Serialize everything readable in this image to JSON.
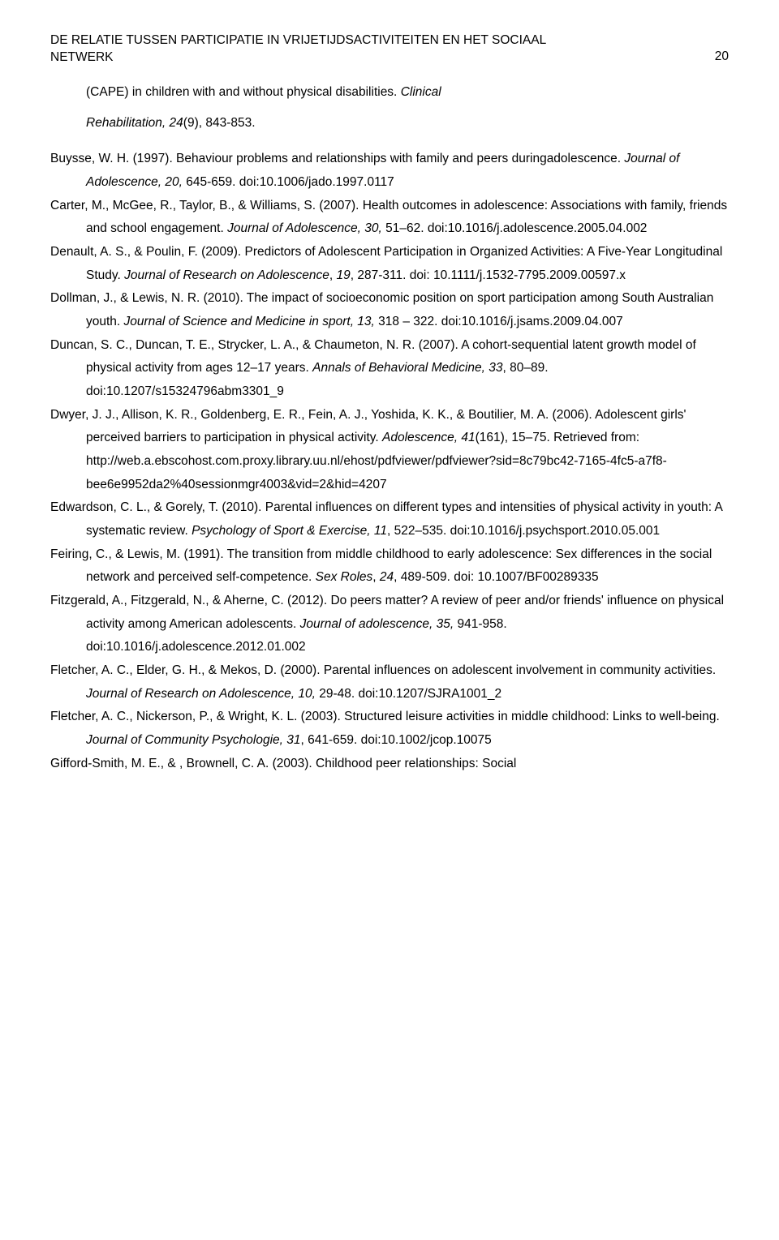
{
  "header": {
    "title_line1": "DE RELATIE TUSSEN PARTICIPATIE IN VRIJETIJDSACTIVITEITEN EN HET SOCIAAL",
    "title_line2": "NETWERK",
    "page": "20"
  },
  "cont": {
    "l1a": "(CAPE) in children with and without physical disabilities. ",
    "l1b": "Clinical",
    "l2a": "Rehabilitation, 24",
    "l2b": "(9), 843-853."
  },
  "refs": [
    {
      "parts": [
        {
          "t": "Buysse, W. H. (1997). Behaviour problems and relationships with family and peers duringadolescence. "
        },
        {
          "t": "Journal of Adolescence, 20,",
          "i": true
        },
        {
          "t": " 645-659. doi:10.1006/jado.1997.0117"
        }
      ]
    },
    {
      "parts": [
        {
          "t": "Carter, M., McGee, R., Taylor, B., & Williams, S. (2007). Health outcomes in adolescence: Associations with family, friends and school engagement. "
        },
        {
          "t": "Journal of Adolescence, 30,",
          "i": true
        },
        {
          "t": " 51–62. doi:10.1016/j.adolescence.2005.04.002"
        }
      ]
    },
    {
      "parts": [
        {
          "t": "Denault, A. S., & Poulin, F. (2009). Predictors of Adolescent Participation in Organized Activities: A Five‐Year Longitudinal Study. "
        },
        {
          "t": "Journal of Research on Adolescence",
          "i": true
        },
        {
          "t": ", "
        },
        {
          "t": "19",
          "i": true
        },
        {
          "t": ", 287-311. doi: 10.1111/j.1532-7795.2009.00597.x"
        }
      ]
    },
    {
      "parts": [
        {
          "t": "Dollman, J., & Lewis, N. R. (2010). The impact of socioeconomic position on sport participation among South Australian youth. "
        },
        {
          "t": "Journal of Science and Medicine in sport, 13,",
          "i": true
        },
        {
          "t": " 318 – 322. doi:10.1016/j.jsams.2009.04.007"
        }
      ]
    },
    {
      "parts": [
        {
          "t": "Duncan, S. C., Duncan, T. E., Strycker, L. A., & Chaumeton, N. R. (2007). A cohort-sequential latent growth model of physical activity from ages 12–17 years. "
        },
        {
          "t": "Annals of Behavioral Medicine, 33",
          "i": true
        },
        {
          "t": ", 80–89. doi:10.1207/s15324796abm3301_9"
        }
      ]
    },
    {
      "parts": [
        {
          "t": "Dwyer, J. J., Allison, K. R., Goldenberg, E. R., Fein, A. J., Yoshida, K. K., & Boutilier, M. A. (2006). Adolescent girls' perceived barriers to participation in physical activity. "
        },
        {
          "t": "Adolescence, 41",
          "i": true
        },
        {
          "t": "(161), 15–75. Retrieved from: http://web.a.ebscohost.com.proxy.library.uu.nl/ehost/pdfviewer/pdfviewer?sid=8c79bc42-7165-4fc5-a7f8-bee6e9952da2%40sessionmgr4003&vid=2&hid=4207"
        }
      ]
    },
    {
      "parts": [
        {
          "t": "Edwardson, C. L., & Gorely, T. (2010). Parental influences on different types and intensities of physical activity in youth: A systematic review. "
        },
        {
          "t": "Psychology of Sport & Exercise, 11",
          "i": true
        },
        {
          "t": ", 522–535. doi:10.1016/j.psychsport.2010.05.001"
        }
      ]
    },
    {
      "parts": [
        {
          "t": "Feiring, C., & Lewis, M. (1991). The transition from middle childhood to early adolescence: Sex differences in the social network and perceived self-competence. "
        },
        {
          "t": "Sex Roles",
          "i": true
        },
        {
          "t": ", "
        },
        {
          "t": "24",
          "i": true
        },
        {
          "t": ", 489-509. doi: 10.1007/BF00289335"
        }
      ]
    },
    {
      "parts": [
        {
          "t": "Fitzgerald, A., Fitzgerald, N., & Aherne, C. (2012). Do peers matter? A review of peer and/or friends' influence on physical activity among American adolescents. "
        },
        {
          "t": "Journal of adolescence, 35,",
          "i": true
        },
        {
          "t": " 941-958. doi:10.1016/j.adolescence.2012.01.002"
        }
      ]
    },
    {
      "parts": [
        {
          "t": "Fletcher, A. C., Elder, G. H., & Mekos, D. (2000). Parental influences on adolescent involvement in community activities. "
        },
        {
          "t": "Journal of Research on Adolescence, 10,",
          "i": true
        },
        {
          "t": " 29-48. doi:10.1207/SJRA1001_2"
        }
      ]
    },
    {
      "parts": [
        {
          "t": "Fletcher, A. C., Nickerson, P., & Wright, K. L. (2003). Structured leisure activities in middle childhood: Links to well-being. "
        },
        {
          "t": "Journal of Community Psychologie, 31",
          "i": true
        },
        {
          "t": ", 641-659. doi:10.1002/jcop.10075"
        }
      ]
    },
    {
      "parts": [
        {
          "t": "Gifford-Smith, M. E., & , Brownell, C. A. (2003). Childhood peer relationships: Social"
        }
      ]
    }
  ]
}
